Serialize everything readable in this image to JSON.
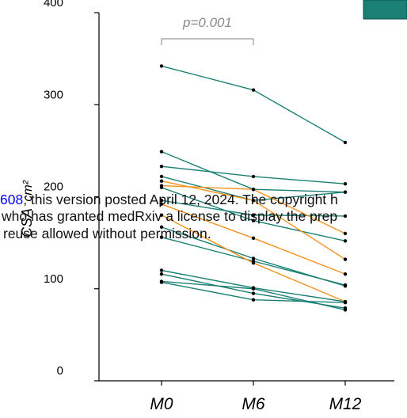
{
  "colors": {
    "teal": "#1a7f74",
    "orange": "#f5921e",
    "axis": "#000000",
    "bracket": "#9a9a9a",
    "point": "#000000",
    "link": "#0000ee"
  },
  "chart_data": {
    "type": "line",
    "categories": [
      "M0",
      "M6",
      "M12"
    ],
    "ylabel": "CSA",
    "ylabel_unit": "cm²",
    "ylim": [
      0,
      400
    ],
    "yticks": [
      "0",
      "100",
      "200",
      "300",
      "400"
    ],
    "ytick_values": [
      0,
      100,
      200,
      300,
      400
    ],
    "annotation": "p=0.001",
    "series": [
      {
        "group": "teal",
        "values": [
          342,
          316,
          259
        ]
      },
      {
        "group": "teal",
        "values": [
          249,
          208,
          205
        ]
      },
      {
        "group": "teal",
        "values": [
          233,
          222,
          214
        ]
      },
      {
        "group": "teal",
        "values": [
          222,
          196,
          205
        ]
      },
      {
        "group": "teal",
        "values": [
          210,
          174,
          152
        ]
      },
      {
        "group": "teal",
        "values": [
          196,
          180,
          179
        ]
      },
      {
        "group": "teal",
        "values": [
          167,
          133,
          103
        ]
      },
      {
        "group": "teal",
        "values": [
          156,
          130,
          104
        ]
      },
      {
        "group": "teal",
        "values": [
          120,
          101,
          86
        ]
      },
      {
        "group": "teal",
        "values": [
          116,
          95,
          79
        ]
      },
      {
        "group": "teal",
        "values": [
          108,
          100,
          77
        ]
      },
      {
        "group": "teal",
        "values": [
          107,
          88,
          85
        ]
      },
      {
        "group": "orange",
        "values": [
          217,
          196,
          132
        ]
      },
      {
        "group": "orange",
        "values": [
          212,
          208,
          160
        ]
      },
      {
        "group": "orange",
        "values": [
          192,
          155,
          116
        ]
      },
      {
        "group": "orange",
        "values": [
          180,
          128,
          86
        ]
      }
    ]
  },
  "legend": {
    "swatch_color": "#1a7f74"
  },
  "watermark": {
    "line1_link": "608",
    "line1_text": "; this version posted April 12, 2024. The copyright h",
    "line2_text": "who has granted medRxiv a license to display the prep",
    "line3_text": "reuse allowed without permission."
  }
}
